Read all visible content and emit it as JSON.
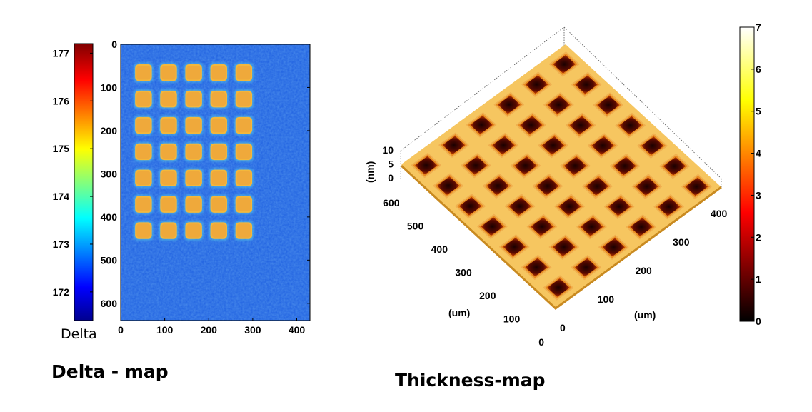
{
  "chart_data": [
    {
      "type": "heatmap",
      "title": "Delta - map",
      "colorbar_label": "Delta",
      "colormap": "jet",
      "x_ticks": [
        "0",
        "100",
        "200",
        "300",
        "400"
      ],
      "y_ticks": [
        "0",
        "100",
        "200",
        "300",
        "400",
        "500",
        "600"
      ],
      "xlim": [
        0,
        430
      ],
      "ylim": [
        0,
        640
      ],
      "y_reversed": true,
      "colorbar_ticks": [
        "177",
        "176",
        "175",
        "174",
        "173",
        "172"
      ],
      "colorbar_range": [
        171.4,
        177.2
      ],
      "pattern": {
        "description": "grid of square pads",
        "rows": 7,
        "cols": 5,
        "pad_value": 175.3,
        "background_value": 172.2,
        "pad_size": 38,
        "pitch": 57
      }
    },
    {
      "type": "surface",
      "title": "Thickness-map",
      "colormap": "hot",
      "z_label": "(nm)",
      "x_label": "(um)",
      "y_label": "(um)",
      "z_ticks": [
        "10",
        "5",
        "0"
      ],
      "left_axis_ticks": [
        "600",
        "500",
        "400",
        "300",
        "200",
        "100",
        "0"
      ],
      "right_axis_ticks": [
        "0",
        "100",
        "200",
        "300",
        "400"
      ],
      "colorbar_ticks": [
        "7",
        "6",
        "5",
        "4",
        "3",
        "2",
        "1",
        "0"
      ],
      "colorbar_range": [
        0,
        7
      ],
      "pattern": {
        "description": "grid of square wells in a raised mesh",
        "rows": 7,
        "cols": 6,
        "mesh_height": 6,
        "well_depth": 0
      }
    }
  ],
  "colors": {
    "background": "#ffffff",
    "text": "#000000"
  }
}
